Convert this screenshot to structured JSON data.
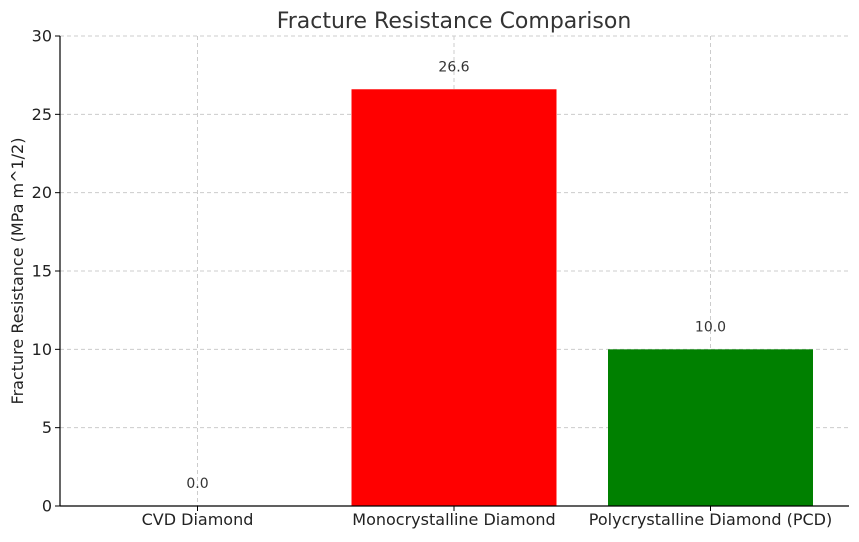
{
  "chart_data": {
    "type": "bar",
    "title": "Fracture Resistance Comparison",
    "xlabel": "",
    "ylabel": "Fracture Resistance (MPa m^1/2)",
    "categories": [
      "CVD Diamond",
      "Monocrystalline Diamond",
      "Polycrystalline Diamond (PCD)"
    ],
    "values": [
      0.0,
      26.6,
      10.0
    ],
    "value_labels": [
      "0.0",
      "26.6",
      "10.0"
    ],
    "colors": [
      "#0000ff",
      "#ff0000",
      "#008000"
    ],
    "ylim": [
      0,
      30
    ],
    "yticks": [
      0,
      5,
      10,
      15,
      20,
      25,
      30
    ],
    "grid": true,
    "legend": "none"
  }
}
